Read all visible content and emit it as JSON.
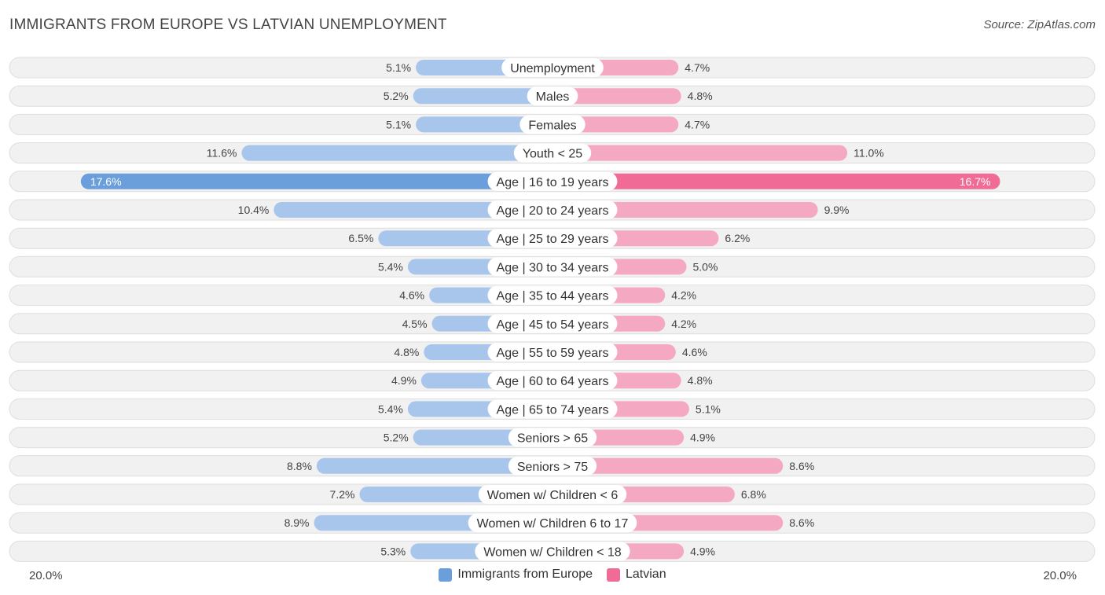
{
  "title": "IMMIGRANTS FROM EUROPE VS LATVIAN UNEMPLOYMENT",
  "source": "Source: ZipAtlas.com",
  "axis": {
    "left_label": "20.0%",
    "right_label": "20.0%"
  },
  "legend": [
    {
      "name": "Immigrants from Europe",
      "color": "#6a9fdc"
    },
    {
      "name": "Latvian",
      "color": "#f06b96"
    }
  ],
  "colors": {
    "left_light": "#a8c6ec",
    "left_strong": "#6a9fdc",
    "right_light": "#f5a8c2",
    "right_strong": "#f06b96"
  },
  "chart_data": {
    "type": "bar",
    "orientation": "diverging-horizontal",
    "xlim": [
      -20,
      20
    ],
    "categories": [
      "Unemployment",
      "Males",
      "Females",
      "Youth < 25",
      "Age | 16 to 19 years",
      "Age | 20 to 24 years",
      "Age | 25 to 29 years",
      "Age | 30 to 34 years",
      "Age | 35 to 44 years",
      "Age | 45 to 54 years",
      "Age | 55 to 59 years",
      "Age | 60 to 64 years",
      "Age | 65 to 74 years",
      "Seniors > 65",
      "Seniors > 75",
      "Women w/ Children < 6",
      "Women w/ Children 6 to 17",
      "Women w/ Children < 18"
    ],
    "series": [
      {
        "name": "Immigrants from Europe",
        "values": [
          5.1,
          5.2,
          5.1,
          11.6,
          17.6,
          10.4,
          6.5,
          5.4,
          4.6,
          4.5,
          4.8,
          4.9,
          5.4,
          5.2,
          8.8,
          7.2,
          8.9,
          5.3
        ],
        "labels": [
          "5.1%",
          "5.2%",
          "5.1%",
          "11.6%",
          "17.6%",
          "10.4%",
          "6.5%",
          "5.4%",
          "4.6%",
          "4.5%",
          "4.8%",
          "4.9%",
          "5.4%",
          "5.2%",
          "8.8%",
          "7.2%",
          "8.9%",
          "5.3%"
        ]
      },
      {
        "name": "Latvian",
        "values": [
          4.7,
          4.8,
          4.7,
          11.0,
          16.7,
          9.9,
          6.2,
          5.0,
          4.2,
          4.2,
          4.6,
          4.8,
          5.1,
          4.9,
          8.6,
          6.8,
          8.6,
          4.9
        ],
        "labels": [
          "4.7%",
          "4.8%",
          "4.7%",
          "11.0%",
          "16.7%",
          "9.9%",
          "6.2%",
          "5.0%",
          "4.2%",
          "4.2%",
          "4.6%",
          "4.8%",
          "5.1%",
          "4.9%",
          "8.6%",
          "6.8%",
          "8.6%",
          "4.9%"
        ]
      }
    ]
  }
}
